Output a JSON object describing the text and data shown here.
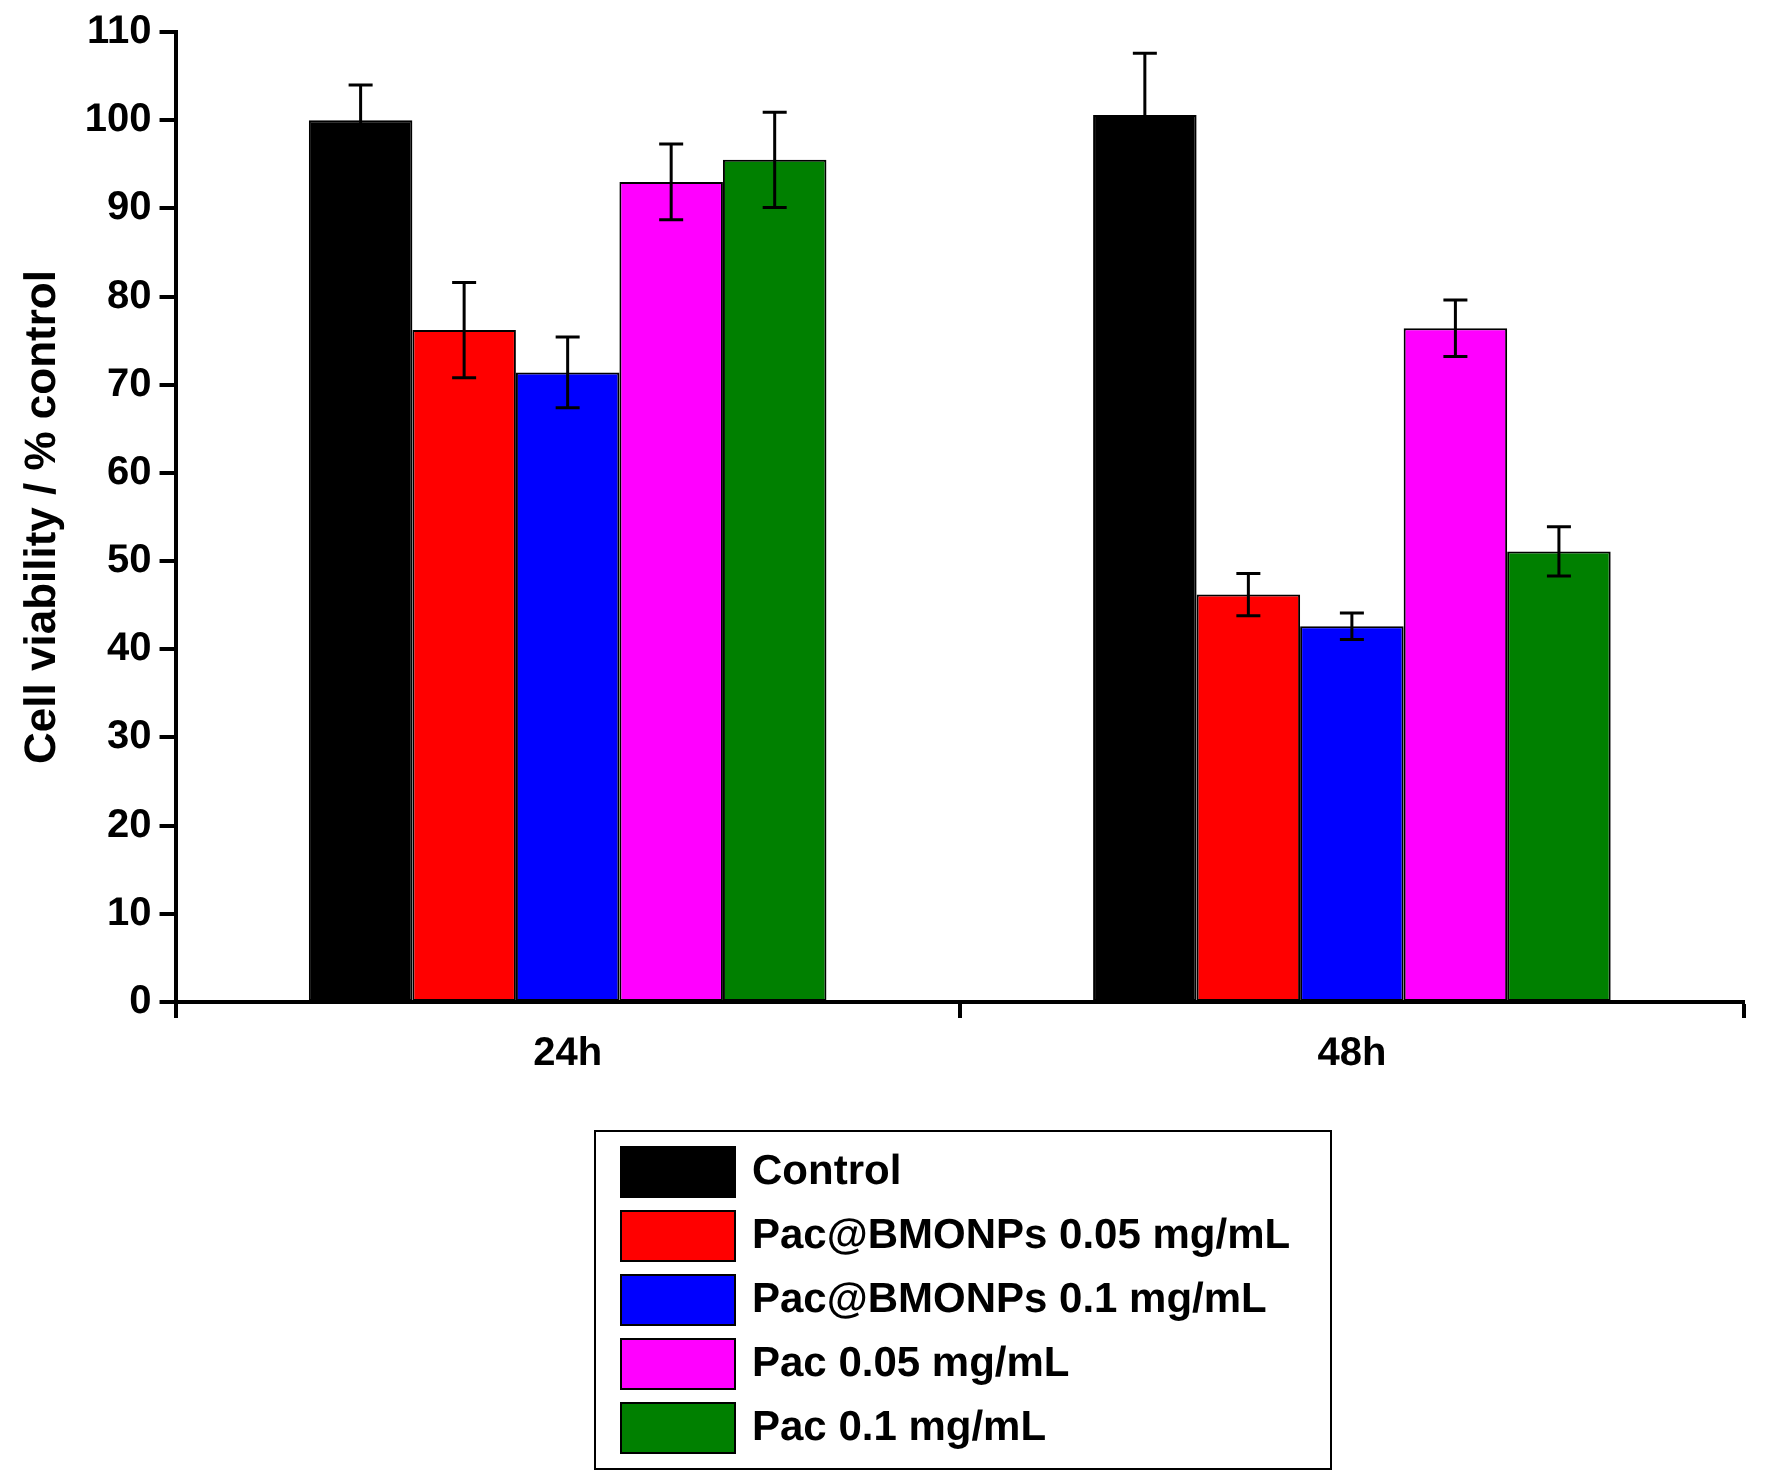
{
  "chart_data": {
    "type": "bar",
    "ylabel": "Cell viability / % control",
    "categories": [
      "24h",
      "48h"
    ],
    "series": [
      {
        "name": "Control",
        "color": "#000000",
        "values": [
          100,
          100.6
        ],
        "errors": [
          4,
          7
        ]
      },
      {
        "name": "Pac@BMONPs 0.05 mg/mL",
        "color": "#ff0000",
        "values": [
          76.2,
          46.2
        ],
        "errors": [
          5.4,
          2.4
        ]
      },
      {
        "name": "Pac@BMONPs 0.1 mg/mL",
        "color": "#0000ff",
        "values": [
          71.4,
          42.6
        ],
        "errors": [
          4,
          1.5
        ]
      },
      {
        "name": "Pac 0.05 mg/mL",
        "color": "#ff00ff",
        "values": [
          93,
          76.4
        ],
        "errors": [
          4.3,
          3.2
        ]
      },
      {
        "name": "Pac 0.1 mg/mL",
        "color": "#008000",
        "values": [
          95.5,
          51.1
        ],
        "errors": [
          5.4,
          2.8
        ]
      }
    ],
    "ylim": [
      0,
      110
    ],
    "yticks": [
      0,
      10,
      20,
      30,
      40,
      50,
      60,
      70,
      80,
      90,
      100,
      110
    ],
    "grid": false,
    "legend": "bottom"
  }
}
